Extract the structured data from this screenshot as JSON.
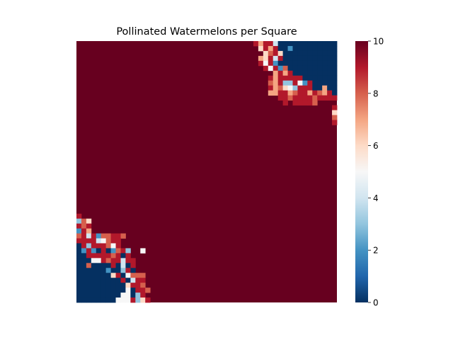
{
  "chart_data": {
    "type": "heatmap",
    "title": "Pollinated Watermelons per Square",
    "xlabel": "",
    "ylabel": "",
    "rows": 53,
    "cols": 53,
    "colormap": "RdBu_r",
    "vmin": 0,
    "vmax": 10,
    "colorbar_ticks": [
      0,
      2,
      4,
      6,
      8,
      10
    ],
    "colorbar_tick_labels": [
      "0",
      "2",
      "4",
      "6",
      "8",
      "10"
    ],
    "default_value": 10,
    "cells": [
      [
        0,
        36,
        9
      ],
      [
        0,
        37,
        7
      ],
      [
        0,
        38,
        9
      ],
      [
        0,
        39,
        9
      ],
      [
        0,
        40,
        4
      ],
      [
        0,
        41,
        0
      ],
      [
        0,
        42,
        0
      ],
      [
        0,
        43,
        0
      ],
      [
        0,
        44,
        0
      ],
      [
        0,
        45,
        0
      ],
      [
        0,
        46,
        0
      ],
      [
        0,
        47,
        0
      ],
      [
        0,
        48,
        0
      ],
      [
        0,
        49,
        0
      ],
      [
        0,
        50,
        0
      ],
      [
        0,
        51,
        0
      ],
      [
        0,
        52,
        0
      ],
      [
        1,
        37,
        6
      ],
      [
        1,
        38,
        9
      ],
      [
        1,
        39,
        7
      ],
      [
        1,
        40,
        9
      ],
      [
        1,
        41,
        0
      ],
      [
        1,
        42,
        0
      ],
      [
        1,
        43,
        2
      ],
      [
        1,
        44,
        0
      ],
      [
        1,
        45,
        0
      ],
      [
        1,
        46,
        0
      ],
      [
        1,
        47,
        0
      ],
      [
        1,
        48,
        0
      ],
      [
        1,
        49,
        0
      ],
      [
        1,
        50,
        0
      ],
      [
        1,
        51,
        0
      ],
      [
        1,
        52,
        0
      ],
      [
        2,
        38,
        6
      ],
      [
        2,
        39,
        8
      ],
      [
        2,
        40,
        9
      ],
      [
        2,
        41,
        6
      ],
      [
        2,
        42,
        0
      ],
      [
        2,
        43,
        0
      ],
      [
        2,
        44,
        0
      ],
      [
        2,
        45,
        0
      ],
      [
        2,
        46,
        0
      ],
      [
        2,
        47,
        0
      ],
      [
        2,
        48,
        0
      ],
      [
        2,
        49,
        0
      ],
      [
        2,
        50,
        0
      ],
      [
        2,
        51,
        0
      ],
      [
        2,
        52,
        0
      ],
      [
        3,
        37,
        7
      ],
      [
        3,
        38,
        6
      ],
      [
        3,
        39,
        9
      ],
      [
        3,
        40,
        4
      ],
      [
        3,
        41,
        9
      ],
      [
        3,
        42,
        0
      ],
      [
        3,
        43,
        0
      ],
      [
        3,
        44,
        0
      ],
      [
        3,
        45,
        0
      ],
      [
        3,
        46,
        0
      ],
      [
        3,
        47,
        0
      ],
      [
        3,
        48,
        0
      ],
      [
        3,
        49,
        0
      ],
      [
        3,
        50,
        0
      ],
      [
        3,
        51,
        0
      ],
      [
        3,
        52,
        0
      ],
      [
        4,
        37,
        9
      ],
      [
        4,
        38,
        5
      ],
      [
        4,
        39,
        9
      ],
      [
        4,
        40,
        2
      ],
      [
        4,
        41,
        0
      ],
      [
        4,
        42,
        0
      ],
      [
        4,
        43,
        0
      ],
      [
        4,
        44,
        0
      ],
      [
        4,
        45,
        0
      ],
      [
        4,
        46,
        0
      ],
      [
        4,
        47,
        0
      ],
      [
        4,
        48,
        0
      ],
      [
        4,
        49,
        0
      ],
      [
        4,
        50,
        0
      ],
      [
        4,
        51,
        0
      ],
      [
        4,
        52,
        0
      ],
      [
        5,
        38,
        9
      ],
      [
        5,
        39,
        5
      ],
      [
        5,
        40,
        9
      ],
      [
        5,
        41,
        2
      ],
      [
        5,
        42,
        8
      ],
      [
        5,
        43,
        0
      ],
      [
        5,
        44,
        0
      ],
      [
        5,
        45,
        0
      ],
      [
        5,
        46,
        0
      ],
      [
        5,
        47,
        0
      ],
      [
        5,
        48,
        0
      ],
      [
        5,
        49,
        0
      ],
      [
        5,
        50,
        0
      ],
      [
        5,
        51,
        0
      ],
      [
        5,
        52,
        0
      ],
      [
        6,
        40,
        7
      ],
      [
        6,
        41,
        9
      ],
      [
        6,
        42,
        7
      ],
      [
        6,
        43,
        9
      ],
      [
        6,
        44,
        0
      ],
      [
        6,
        45,
        0
      ],
      [
        6,
        46,
        0
      ],
      [
        6,
        47,
        0
      ],
      [
        6,
        48,
        0
      ],
      [
        6,
        49,
        0
      ],
      [
        6,
        50,
        0
      ],
      [
        6,
        51,
        0
      ],
      [
        6,
        52,
        0
      ],
      [
        7,
        39,
        9
      ],
      [
        7,
        40,
        7
      ],
      [
        7,
        41,
        9
      ],
      [
        7,
        42,
        9
      ],
      [
        7,
        43,
        9
      ],
      [
        7,
        44,
        9
      ],
      [
        7,
        45,
        9
      ],
      [
        7,
        46,
        0
      ],
      [
        7,
        47,
        0
      ],
      [
        7,
        48,
        0
      ],
      [
        7,
        49,
        0
      ],
      [
        7,
        50,
        0
      ],
      [
        7,
        51,
        0
      ],
      [
        7,
        52,
        0
      ],
      [
        8,
        39,
        8
      ],
      [
        8,
        40,
        7
      ],
      [
        8,
        41,
        9
      ],
      [
        8,
        42,
        3
      ],
      [
        8,
        43,
        3
      ],
      [
        8,
        44,
        9
      ],
      [
        8,
        45,
        5
      ],
      [
        8,
        46,
        2
      ],
      [
        8,
        47,
        9
      ],
      [
        8,
        48,
        0
      ],
      [
        8,
        49,
        0
      ],
      [
        8,
        50,
        0
      ],
      [
        8,
        51,
        0
      ],
      [
        8,
        52,
        0
      ],
      [
        9,
        39,
        9
      ],
      [
        9,
        40,
        7
      ],
      [
        9,
        41,
        8
      ],
      [
        9,
        42,
        6
      ],
      [
        9,
        43,
        5
      ],
      [
        9,
        44,
        3
      ],
      [
        9,
        45,
        9
      ],
      [
        9,
        46,
        9
      ],
      [
        9,
        47,
        9
      ],
      [
        9,
        48,
        0
      ],
      [
        9,
        49,
        0
      ],
      [
        9,
        50,
        7
      ],
      [
        9,
        51,
        0
      ],
      [
        9,
        52,
        0
      ],
      [
        10,
        39,
        7
      ],
      [
        10,
        40,
        7
      ],
      [
        10,
        41,
        9
      ],
      [
        10,
        42,
        9
      ],
      [
        10,
        43,
        7
      ],
      [
        10,
        44,
        8
      ],
      [
        10,
        45,
        9
      ],
      [
        10,
        46,
        9
      ],
      [
        10,
        47,
        7
      ],
      [
        10,
        48,
        9
      ],
      [
        10,
        49,
        8
      ],
      [
        10,
        50,
        7
      ],
      [
        10,
        51,
        9
      ],
      [
        10,
        52,
        0
      ],
      [
        11,
        41,
        9
      ],
      [
        11,
        42,
        9
      ],
      [
        11,
        43,
        8
      ],
      [
        11,
        44,
        9
      ],
      [
        11,
        45,
        9
      ],
      [
        11,
        46,
        9
      ],
      [
        11,
        47,
        9
      ],
      [
        11,
        48,
        8
      ],
      [
        11,
        49,
        9
      ],
      [
        11,
        50,
        9
      ],
      [
        11,
        51,
        9
      ],
      [
        11,
        52,
        9
      ],
      [
        12,
        42,
        9
      ],
      [
        12,
        44,
        9
      ],
      [
        12,
        45,
        9
      ],
      [
        12,
        46,
        9
      ],
      [
        12,
        47,
        9
      ],
      [
        12,
        48,
        8
      ],
      [
        13,
        52,
        9
      ],
      [
        14,
        52,
        6
      ],
      [
        15,
        52,
        8
      ],
      [
        16,
        52,
        9
      ],
      [
        35,
        0,
        9
      ],
      [
        36,
        0,
        3
      ],
      [
        36,
        1,
        8
      ],
      [
        36,
        2,
        6
      ],
      [
        37,
        0,
        9
      ],
      [
        37,
        1,
        8
      ],
      [
        37,
        2,
        9
      ],
      [
        38,
        0,
        2
      ],
      [
        38,
        1,
        9
      ],
      [
        38,
        2,
        7
      ],
      [
        39,
        0,
        8
      ],
      [
        39,
        1,
        9
      ],
      [
        39,
        2,
        4
      ],
      [
        39,
        3,
        9
      ],
      [
        39,
        4,
        2
      ],
      [
        39,
        5,
        8
      ],
      [
        39,
        6,
        8
      ],
      [
        39,
        7,
        9
      ],
      [
        39,
        8,
        9
      ],
      [
        39,
        9,
        8
      ],
      [
        40,
        0,
        9
      ],
      [
        40,
        1,
        9
      ],
      [
        40,
        2,
        9
      ],
      [
        40,
        3,
        9
      ],
      [
        40,
        4,
        4
      ],
      [
        40,
        5,
        5
      ],
      [
        40,
        6,
        8
      ],
      [
        40,
        7,
        9
      ],
      [
        40,
        8,
        9
      ],
      [
        41,
        0,
        0
      ],
      [
        41,
        1,
        9
      ],
      [
        41,
        2,
        3
      ],
      [
        41,
        3,
        9
      ],
      [
        41,
        4,
        9
      ],
      [
        41,
        5,
        9
      ],
      [
        41,
        6,
        8
      ],
      [
        41,
        7,
        5
      ],
      [
        41,
        8,
        9
      ],
      [
        42,
        0,
        0
      ],
      [
        42,
        1,
        2
      ],
      [
        42,
        2,
        9
      ],
      [
        42,
        3,
        2
      ],
      [
        42,
        4,
        0
      ],
      [
        42,
        5,
        9
      ],
      [
        42,
        6,
        0
      ],
      [
        42,
        7,
        2
      ],
      [
        42,
        8,
        8
      ],
      [
        42,
        9,
        9
      ],
      [
        42,
        10,
        3
      ],
      [
        42,
        13,
        5
      ],
      [
        43,
        0,
        0
      ],
      [
        43,
        1,
        0
      ],
      [
        43,
        2,
        9
      ],
      [
        43,
        3,
        9
      ],
      [
        43,
        4,
        9
      ],
      [
        43,
        5,
        9
      ],
      [
        43,
        6,
        9
      ],
      [
        43,
        7,
        8
      ],
      [
        43,
        8,
        9
      ],
      [
        43,
        9,
        0
      ],
      [
        43,
        10,
        9
      ],
      [
        44,
        0,
        0
      ],
      [
        44,
        1,
        0
      ],
      [
        44,
        2,
        0
      ],
      [
        44,
        3,
        5
      ],
      [
        44,
        4,
        5
      ],
      [
        44,
        5,
        9
      ],
      [
        44,
        6,
        8
      ],
      [
        44,
        7,
        9
      ],
      [
        44,
        8,
        9
      ],
      [
        44,
        9,
        4
      ],
      [
        44,
        10,
        9
      ],
      [
        44,
        11,
        9
      ],
      [
        45,
        0,
        0
      ],
      [
        45,
        1,
        0
      ],
      [
        45,
        2,
        8
      ],
      [
        45,
        3,
        0
      ],
      [
        45,
        4,
        0
      ],
      [
        45,
        5,
        0
      ],
      [
        45,
        6,
        0
      ],
      [
        45,
        7,
        9
      ],
      [
        45,
        8,
        0
      ],
      [
        45,
        9,
        4
      ],
      [
        45,
        10,
        0
      ],
      [
        45,
        11,
        9
      ],
      [
        46,
        0,
        0
      ],
      [
        46,
        1,
        0
      ],
      [
        46,
        2,
        0
      ],
      [
        46,
        3,
        0
      ],
      [
        46,
        4,
        0
      ],
      [
        46,
        5,
        0
      ],
      [
        46,
        6,
        2
      ],
      [
        46,
        7,
        0
      ],
      [
        46,
        8,
        0
      ],
      [
        46,
        9,
        3
      ],
      [
        46,
        10,
        9
      ],
      [
        46,
        11,
        0
      ],
      [
        47,
        0,
        0
      ],
      [
        47,
        1,
        0
      ],
      [
        47,
        2,
        0
      ],
      [
        47,
        3,
        0
      ],
      [
        47,
        4,
        0
      ],
      [
        47,
        5,
        0
      ],
      [
        47,
        6,
        0
      ],
      [
        47,
        7,
        6
      ],
      [
        47,
        8,
        9
      ],
      [
        47,
        9,
        0
      ],
      [
        47,
        10,
        5
      ],
      [
        47,
        11,
        8
      ],
      [
        47,
        12,
        8
      ],
      [
        47,
        13,
        8
      ],
      [
        48,
        0,
        0
      ],
      [
        48,
        1,
        0
      ],
      [
        48,
        2,
        0
      ],
      [
        48,
        3,
        0
      ],
      [
        48,
        4,
        0
      ],
      [
        48,
        5,
        0
      ],
      [
        48,
        6,
        0
      ],
      [
        48,
        7,
        0
      ],
      [
        48,
        8,
        0
      ],
      [
        48,
        9,
        9
      ],
      [
        48,
        10,
        0
      ],
      [
        48,
        11,
        4
      ],
      [
        48,
        12,
        9
      ],
      [
        48,
        13,
        9
      ],
      [
        49,
        0,
        0
      ],
      [
        49,
        1,
        0
      ],
      [
        49,
        2,
        0
      ],
      [
        49,
        3,
        0
      ],
      [
        49,
        4,
        0
      ],
      [
        49,
        5,
        0
      ],
      [
        49,
        6,
        0
      ],
      [
        49,
        7,
        0
      ],
      [
        49,
        8,
        0
      ],
      [
        49,
        9,
        0
      ],
      [
        49,
        10,
        6
      ],
      [
        49,
        11,
        9
      ],
      [
        49,
        12,
        9
      ],
      [
        49,
        13,
        8
      ],
      [
        50,
        0,
        0
      ],
      [
        50,
        1,
        0
      ],
      [
        50,
        2,
        0
      ],
      [
        50,
        3,
        0
      ],
      [
        50,
        4,
        0
      ],
      [
        50,
        5,
        0
      ],
      [
        50,
        6,
        0
      ],
      [
        50,
        7,
        0
      ],
      [
        50,
        8,
        0
      ],
      [
        50,
        9,
        0
      ],
      [
        50,
        10,
        5
      ],
      [
        50,
        11,
        0
      ],
      [
        50,
        12,
        9
      ],
      [
        50,
        13,
        9
      ],
      [
        50,
        14,
        8
      ],
      [
        51,
        0,
        0
      ],
      [
        51,
        1,
        0
      ],
      [
        51,
        2,
        0
      ],
      [
        51,
        3,
        0
      ],
      [
        51,
        4,
        0
      ],
      [
        51,
        5,
        0
      ],
      [
        51,
        6,
        0
      ],
      [
        51,
        7,
        0
      ],
      [
        51,
        8,
        0
      ],
      [
        51,
        9,
        5
      ],
      [
        51,
        10,
        5
      ],
      [
        51,
        11,
        0
      ],
      [
        51,
        12,
        3
      ],
      [
        51,
        13,
        9
      ],
      [
        52,
        0,
        0
      ],
      [
        52,
        1,
        0
      ],
      [
        52,
        2,
        0
      ],
      [
        52,
        3,
        0
      ],
      [
        52,
        4,
        0
      ],
      [
        52,
        5,
        0
      ],
      [
        52,
        6,
        0
      ],
      [
        52,
        7,
        0
      ],
      [
        52,
        8,
        5
      ],
      [
        52,
        9,
        5
      ],
      [
        52,
        10,
        5
      ],
      [
        52,
        11,
        9
      ],
      [
        52,
        12,
        3
      ],
      [
        52,
        13,
        6
      ],
      [
        52,
        14,
        9
      ]
    ]
  }
}
